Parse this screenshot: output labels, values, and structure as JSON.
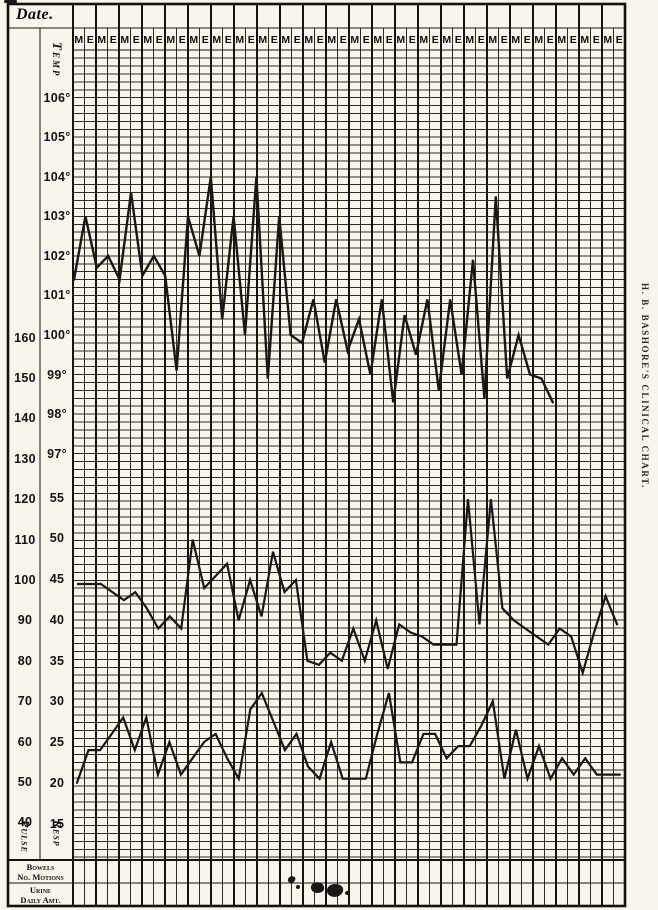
{
  "page": {
    "date_label": "Date.",
    "side_title": "H. B. BASHORE'S CLINICAL CHART.",
    "smudges_note": "illegible ink marks near bottom center of record rows"
  },
  "header": {
    "days": 24,
    "columns_per_day": [
      "M",
      "E"
    ]
  },
  "axes": {
    "temp": {
      "label": "Temp",
      "ticks": [
        "106°",
        "105°",
        "104°",
        "103°",
        "102°",
        "101°",
        "100°",
        "99°",
        "98°",
        "97°"
      ]
    },
    "pulse": {
      "label": "Pulse",
      "ticks": [
        "160",
        "150",
        "140",
        "130",
        "120",
        "110",
        "100",
        "90",
        "80",
        "70",
        "60",
        "50",
        "40"
      ]
    },
    "resp": {
      "label": "Resp",
      "ticks": [
        "55",
        "50",
        "45",
        "40",
        "35",
        "30",
        "25",
        "20",
        "15"
      ]
    }
  },
  "footer": {
    "rows": [
      {
        "line1": "Bowels",
        "line2": "No. Motions"
      },
      {
        "line1": "Urine",
        "line2": "Daily Amt."
      }
    ]
  },
  "chart_data": {
    "type": "line",
    "title": "H. B. BASHORE'S CLINICAL CHART.",
    "x_axis": "48 half-day observation columns (M = morning, E = evening) over 24 days; date row blank",
    "grid": "on",
    "legend_position": "none (labels rotated on left margin)",
    "y_axes": {
      "temperature": {
        "min": 97,
        "max": 106,
        "unit": "deg F",
        "per_major_line": 1
      },
      "pulse": {
        "min": 40,
        "max": 160,
        "per_major_line": 10
      },
      "respiration": {
        "min": 15,
        "max": 55,
        "per_major_line": 5
      }
    },
    "series": [
      {
        "name": "Temperature (deg F)",
        "values": [
          101.4,
          103,
          101.7,
          102,
          101.4,
          103.6,
          101.5,
          102,
          101.5,
          99.1,
          103,
          102,
          104,
          100.4,
          103,
          100,
          104,
          98.9,
          103,
          100,
          99.8,
          100.9,
          99.3,
          100.9,
          99.6,
          100.4,
          99,
          100.9,
          98.3,
          100.5,
          99.5,
          100.9,
          98.6,
          100.9,
          99,
          101.9,
          98.4,
          103.5,
          98.9,
          100,
          99,
          98.9,
          98.3
        ]
      },
      {
        "name": "Pulse (beats per min)",
        "values": [
          99,
          99,
          99,
          97,
          95,
          97,
          93,
          88,
          91,
          88,
          110,
          98,
          101,
          104,
          90,
          100,
          91,
          107,
          97,
          100,
          80,
          79,
          82,
          80,
          88,
          80,
          90,
          78,
          89,
          87,
          86,
          84,
          84,
          84,
          120,
          89,
          120,
          93,
          90,
          88,
          86,
          84,
          88,
          86,
          77,
          87,
          96,
          89
        ]
      },
      {
        "name": "Respiration (per min)",
        "values": [
          20,
          24,
          24,
          26,
          28,
          24,
          28,
          21,
          25,
          21,
          23,
          25,
          26,
          23,
          20.5,
          29,
          31,
          27.5,
          24,
          26,
          22,
          20.5,
          25,
          20.5,
          20.5,
          20.5,
          26,
          31,
          22.5,
          22.5,
          26,
          26,
          23,
          24.5,
          24.5,
          27,
          30,
          20.5,
          26.5,
          20.5,
          24.5,
          20.5,
          23,
          21,
          23,
          21,
          21,
          21
        ]
      }
    ]
  }
}
